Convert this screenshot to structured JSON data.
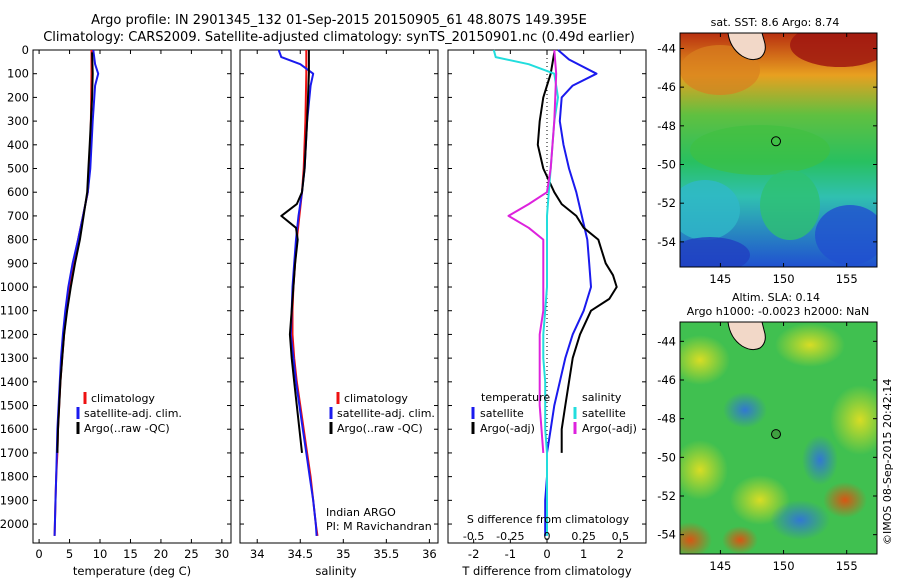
{
  "header": {
    "line1": "Argo profile: IN 2901345_132 01-Sep-2015 20150905_61 48.807S 149.395E",
    "line2": "Climatology: CARS2009. Satellite-adjusted climatology: synTS_20150901.nc (0.49d earlier)"
  },
  "colors": {
    "climatology": "#ee1111",
    "satellite": "#1a1aee",
    "argo": "#000000",
    "sat_salinity": "#22dddd",
    "argo_salinity": "#dd22dd"
  },
  "chart_data": [
    {
      "type": "line",
      "id": "temperature",
      "xlabel": "temperature (deg C)",
      "ylabel": "",
      "xlim": [
        -1,
        31.5
      ],
      "ylim": [
        2080,
        0
      ],
      "xticks": [
        0,
        5,
        10,
        15,
        20,
        25,
        30
      ],
      "yticks": [
        0,
        100,
        200,
        300,
        400,
        500,
        600,
        700,
        800,
        900,
        1000,
        1100,
        1200,
        1300,
        1400,
        1500,
        1600,
        1700,
        1800,
        1900,
        2000
      ],
      "legend": [
        "climatology",
        "satellite-adj. clim.",
        "Argo(..raw -QC)"
      ],
      "legend_position": "lower-right",
      "series": [
        {
          "name": "climatology",
          "color": "#ee1111",
          "points": [
            [
              8.6,
              0
            ],
            [
              8.6,
              100
            ],
            [
              8.5,
              300
            ],
            [
              8.3,
              500
            ],
            [
              8.0,
              600
            ],
            [
              7.2,
              700
            ],
            [
              6.4,
              800
            ],
            [
              5.6,
              900
            ],
            [
              5.0,
              1000
            ],
            [
              4.5,
              1100
            ],
            [
              4.1,
              1200
            ],
            [
              3.8,
              1300
            ],
            [
              3.5,
              1400
            ],
            [
              3.3,
              1500
            ],
            [
              3.1,
              1600
            ],
            [
              3.0,
              1700
            ],
            [
              2.8,
              1800
            ],
            [
              2.7,
              1900
            ],
            [
              2.6,
              2000
            ],
            [
              2.55,
              2050
            ]
          ]
        },
        {
          "name": "satellite-adj. clim.",
          "color": "#1a1aee",
          "points": [
            [
              8.9,
              0
            ],
            [
              9.2,
              60
            ],
            [
              9.7,
              100
            ],
            [
              9.2,
              150
            ],
            [
              8.8,
              300
            ],
            [
              8.4,
              500
            ],
            [
              8.0,
              600
            ],
            [
              7.2,
              700
            ],
            [
              6.4,
              800
            ],
            [
              5.5,
              900
            ],
            [
              4.8,
              1000
            ],
            [
              4.3,
              1100
            ],
            [
              3.9,
              1200
            ],
            [
              3.6,
              1300
            ],
            [
              3.4,
              1400
            ],
            [
              3.2,
              1500
            ],
            [
              3.0,
              1600
            ],
            [
              2.9,
              1700
            ],
            [
              2.8,
              1800
            ],
            [
              2.7,
              1900
            ],
            [
              2.6,
              2000
            ],
            [
              2.55,
              2050
            ]
          ]
        },
        {
          "name": "Argo(..raw -QC)",
          "color": "#000000",
          "points": [
            [
              8.7,
              10
            ],
            [
              8.8,
              100
            ],
            [
              8.7,
              200
            ],
            [
              8.5,
              300
            ],
            [
              8.3,
              400
            ],
            [
              8.1,
              500
            ],
            [
              7.9,
              600
            ],
            [
              7.3,
              700
            ],
            [
              6.7,
              800
            ],
            [
              5.9,
              900
            ],
            [
              5.2,
              1000
            ],
            [
              4.6,
              1100
            ],
            [
              4.1,
              1200
            ],
            [
              3.8,
              1300
            ],
            [
              3.5,
              1400
            ],
            [
              3.3,
              1500
            ],
            [
              3.1,
              1600
            ],
            [
              3.0,
              1700
            ]
          ]
        }
      ]
    },
    {
      "type": "line",
      "id": "salinity",
      "xlabel": "salinity",
      "ylabel": "",
      "xlim": [
        33.8,
        36.1
      ],
      "ylim": [
        2080,
        0
      ],
      "xticks": [
        34,
        34.5,
        35,
        35.5,
        36
      ],
      "legend": [
        "climatology",
        "satellite-adj. clim.",
        "Argo(..raw -QC)"
      ],
      "legend_position": "lower-right",
      "series": [
        {
          "name": "climatology",
          "color": "#ee1111",
          "points": [
            [
              34.57,
              0
            ],
            [
              34.57,
              100
            ],
            [
              34.56,
              300
            ],
            [
              34.54,
              500
            ],
            [
              34.52,
              600
            ],
            [
              34.49,
              700
            ],
            [
              34.46,
              800
            ],
            [
              34.44,
              900
            ],
            [
              34.42,
              1000
            ],
            [
              34.41,
              1100
            ],
            [
              34.41,
              1200
            ],
            [
              34.43,
              1300
            ],
            [
              34.46,
              1400
            ],
            [
              34.5,
              1500
            ],
            [
              34.54,
              1600
            ],
            [
              34.58,
              1700
            ],
            [
              34.62,
              1800
            ],
            [
              34.65,
              1900
            ],
            [
              34.68,
              2000
            ],
            [
              34.7,
              2050
            ]
          ]
        },
        {
          "name": "satellite-adj. clim.",
          "color": "#1a1aee",
          "points": [
            [
              34.25,
              0
            ],
            [
              34.28,
              30
            ],
            [
              34.5,
              60
            ],
            [
              34.65,
              100
            ],
            [
              34.62,
              150
            ],
            [
              34.58,
              300
            ],
            [
              34.55,
              500
            ],
            [
              34.52,
              600
            ],
            [
              34.48,
              700
            ],
            [
              34.45,
              800
            ],
            [
              34.43,
              900
            ],
            [
              34.41,
              1000
            ],
            [
              34.4,
              1100
            ],
            [
              34.39,
              1200
            ],
            [
              34.42,
              1300
            ],
            [
              34.45,
              1400
            ],
            [
              34.49,
              1500
            ],
            [
              34.53,
              1600
            ],
            [
              34.57,
              1700
            ],
            [
              34.61,
              1800
            ],
            [
              34.65,
              1900
            ],
            [
              34.68,
              2000
            ],
            [
              34.69,
              2050
            ]
          ]
        },
        {
          "name": "Argo(..raw -QC)",
          "color": "#000000",
          "points": [
            [
              34.6,
              0
            ],
            [
              34.6,
              100
            ],
            [
              34.58,
              300
            ],
            [
              34.55,
              500
            ],
            [
              34.52,
              600
            ],
            [
              34.46,
              650
            ],
            [
              34.28,
              700
            ],
            [
              34.45,
              750
            ],
            [
              34.47,
              800
            ],
            [
              34.44,
              900
            ],
            [
              34.42,
              1000
            ],
            [
              34.4,
              1100
            ],
            [
              34.38,
              1200
            ],
            [
              34.4,
              1300
            ],
            [
              34.43,
              1400
            ],
            [
              34.46,
              1500
            ],
            [
              34.49,
              1600
            ],
            [
              34.52,
              1700
            ]
          ]
        }
      ],
      "annotation": [
        "Indian ARGO",
        "PI: M Ravichandran"
      ]
    },
    {
      "type": "line",
      "id": "difference",
      "xlabel": "T difference from climatology",
      "xlabel2": "S difference from climatology",
      "ylabel": "",
      "xlim": [
        -2.7,
        2.7
      ],
      "ylim": [
        2080,
        0
      ],
      "xticks": [
        -2,
        -1,
        0,
        1,
        2
      ],
      "xticks2": [
        "-0.5",
        "-0.25",
        "0",
        "0.25",
        "0.5"
      ],
      "legend_groups": [
        {
          "title": "temperature",
          "entries": [
            "satellite",
            "Argo(-adj)"
          ]
        },
        {
          "title": "salinity",
          "entries": [
            "satellite",
            "Argo(-adj)"
          ]
        }
      ],
      "series": [
        {
          "name": "temperature satellite",
          "color": "#1a1aee",
          "points": [
            [
              0.3,
              0
            ],
            [
              0.6,
              40
            ],
            [
              1.35,
              100
            ],
            [
              0.7,
              150
            ],
            [
              0.4,
              200
            ],
            [
              0.35,
              300
            ],
            [
              0.45,
              400
            ],
            [
              0.6,
              500
            ],
            [
              0.8,
              600
            ],
            [
              0.95,
              700
            ],
            [
              1.1,
              800
            ],
            [
              1.15,
              900
            ],
            [
              1.2,
              1000
            ],
            [
              1.0,
              1100
            ],
            [
              0.7,
              1200
            ],
            [
              0.5,
              1300
            ],
            [
              0.35,
              1400
            ],
            [
              0.2,
              1500
            ],
            [
              0.1,
              1600
            ],
            [
              0.0,
              1700
            ],
            [
              0.0,
              1800
            ],
            [
              -0.05,
              1900
            ],
            [
              -0.05,
              2000
            ],
            [
              -0.05,
              2050
            ]
          ]
        },
        {
          "name": "temperature Argo(-adj)",
          "color": "#000000",
          "points": [
            [
              0.2,
              10
            ],
            [
              0.1,
              100
            ],
            [
              -0.1,
              200
            ],
            [
              -0.2,
              300
            ],
            [
              -0.25,
              400
            ],
            [
              -0.1,
              500
            ],
            [
              0.2,
              600
            ],
            [
              0.4,
              650
            ],
            [
              0.8,
              700
            ],
            [
              1.0,
              750
            ],
            [
              1.4,
              800
            ],
            [
              1.5,
              850
            ],
            [
              1.6,
              900
            ],
            [
              1.8,
              950
            ],
            [
              1.9,
              1000
            ],
            [
              1.7,
              1050
            ],
            [
              1.2,
              1100
            ],
            [
              0.9,
              1200
            ],
            [
              0.7,
              1300
            ],
            [
              0.6,
              1400
            ],
            [
              0.5,
              1500
            ],
            [
              0.4,
              1600
            ],
            [
              0.4,
              1700
            ]
          ]
        },
        {
          "name": "salinity satellite",
          "color": "#22dddd",
          "points": [
            [
              -1.45,
              0
            ],
            [
              -1.4,
              30
            ],
            [
              -0.5,
              60
            ],
            [
              0.2,
              100
            ],
            [
              0.3,
              200
            ],
            [
              0.2,
              300
            ],
            [
              0.15,
              400
            ],
            [
              0.1,
              500
            ],
            [
              0.05,
              600
            ],
            [
              0.0,
              700
            ],
            [
              0.0,
              800
            ],
            [
              0.0,
              900
            ],
            [
              0.0,
              1000
            ],
            [
              -0.05,
              1100
            ],
            [
              -0.1,
              1200
            ],
            [
              -0.1,
              1300
            ],
            [
              -0.05,
              1400
            ],
            [
              -0.05,
              1500
            ],
            [
              -0.05,
              1600
            ],
            [
              0.0,
              1700
            ],
            [
              0.0,
              1800
            ],
            [
              0.0,
              1900
            ],
            [
              0.0,
              2000
            ],
            [
              0.0,
              2050
            ]
          ]
        },
        {
          "name": "salinity Argo(-adj)",
          "color": "#dd22dd",
          "points": [
            [
              0.2,
              0
            ],
            [
              0.25,
              100
            ],
            [
              0.2,
              300
            ],
            [
              0.1,
              500
            ],
            [
              0.0,
              600
            ],
            [
              -0.5,
              650
            ],
            [
              -1.05,
              700
            ],
            [
              -0.5,
              750
            ],
            [
              -0.1,
              800
            ],
            [
              -0.1,
              900
            ],
            [
              -0.1,
              1000
            ],
            [
              -0.1,
              1100
            ],
            [
              -0.2,
              1200
            ],
            [
              -0.2,
              1300
            ],
            [
              -0.2,
              1400
            ],
            [
              -0.2,
              1500
            ],
            [
              -0.15,
              1600
            ],
            [
              -0.1,
              1700
            ]
          ]
        }
      ]
    },
    {
      "type": "heatmap",
      "id": "sst_map",
      "title": "sat. SST: 8.6 Argo: 8.74",
      "xlim": [
        141.8,
        157.4
      ],
      "ylim": [
        -55.3,
        -43.2
      ],
      "xticks": [
        145,
        150,
        155
      ],
      "yticks": [
        -44,
        -46,
        -48,
        -50,
        -52,
        -54
      ],
      "marker": [
        149.4,
        -48.8
      ]
    },
    {
      "type": "heatmap",
      "id": "sla_map",
      "title": "Altim. SLA: 0.14",
      "title2": "Argo h1000: -0.0023 h2000: NaN",
      "xlim": [
        141.8,
        157.4
      ],
      "ylim": [
        -55.0,
        -43.0
      ],
      "xticks": [
        145,
        150,
        155
      ],
      "yticks": [
        -44,
        -46,
        -48,
        -50,
        -52,
        -54
      ],
      "marker": [
        149.4,
        -48.8
      ]
    }
  ],
  "credit": "©IMOS 08-Sep-2015 20:42:14"
}
